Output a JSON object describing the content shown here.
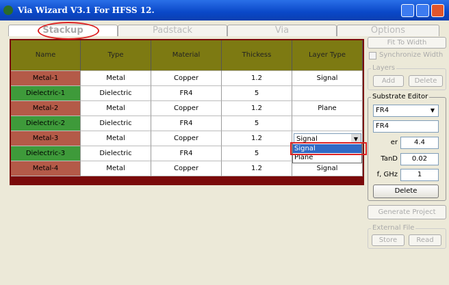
{
  "window": {
    "title": "Via Wizard V3.1 For HFSS 12."
  },
  "tabs": [
    "Stackup",
    "Padstack",
    "Via",
    "Options"
  ],
  "table": {
    "columns": [
      "Name",
      "Type",
      "Material",
      "Thickess",
      "Layer Type"
    ],
    "rows": [
      [
        "Metal-1",
        "Metal",
        "Copper",
        "1.2",
        "Signal"
      ],
      [
        "Dielectric-1",
        "Dielectric",
        "FR4",
        "5",
        null
      ],
      [
        "Metal-2",
        "Metal",
        "Copper",
        "1.2",
        "Plane"
      ],
      [
        "Dielectric-2",
        "Dielectric",
        "FR4",
        "5",
        null
      ],
      [
        "Metal-3",
        "Metal",
        "Copper",
        "1.2",
        "Signal"
      ],
      [
        "Dielectric-3",
        "Dielectric",
        "FR4",
        "5",
        null
      ],
      [
        "Metal-4",
        "Metal",
        "Copper",
        "1.2",
        "Signal"
      ]
    ]
  },
  "dropdown": {
    "options": [
      "Signal",
      "Plane"
    ]
  },
  "panel": {
    "fit_button": "Fit To Width",
    "sync_checkbox": "Synchronize Width",
    "layers_group": "Layers",
    "add_button": "Add",
    "delete_layer_button": "Delete",
    "substrate_group": "Substrate Editor",
    "material_select": "FR4",
    "material_name": "FR4",
    "er_label": "er",
    "er_value": "4.4",
    "tand_label": "TanD",
    "tand_value": "0.02",
    "freq_label": "f, GHz",
    "freq_value": "1",
    "delete_button": "Delete",
    "generate_button": "Generate Project",
    "external_group": "External File",
    "store_button": "Store",
    "read_button": "Read"
  }
}
